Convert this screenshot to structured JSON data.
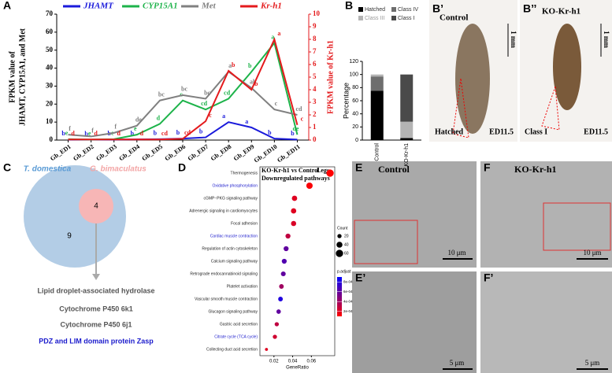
{
  "chart_data": [
    {
      "type": "line",
      "categories": [
        "Gb_ED1",
        "Gb_ED2",
        "Gb_ED3",
        "Gb_ED4",
        "Gb_ED5",
        "Gb_ED6",
        "Gb_ED7",
        "Gb_ED8",
        "Gb_ED9",
        "Gb_ED10",
        "Gb_ED11"
      ],
      "series": [
        {
          "name": "JHAMT",
          "color": "#1a1adb",
          "values": [
            0.3,
            0.2,
            0.3,
            0.4,
            0.5,
            0.8,
            1.5,
            10,
            7,
            0.8,
            0.3
          ],
          "letters": [
            "b",
            "b",
            "b",
            "b",
            "b",
            "b",
            "b",
            "a",
            "a",
            "b",
            "b"
          ]
        },
        {
          "name": "CYP15A1",
          "color": "#1db34a",
          "values": [
            0.5,
            0.3,
            0.5,
            3,
            9,
            22,
            17,
            23,
            38,
            54,
            3
          ],
          "letters": [
            "e",
            "e",
            "e",
            "e",
            "d",
            "c",
            "cd",
            "cd",
            "b",
            "a",
            "de"
          ]
        },
        {
          "name": "Met",
          "color": "#808080",
          "values": [
            3,
            2,
            4,
            8,
            22,
            25,
            23,
            38,
            29,
            17,
            14
          ],
          "letters": [
            "f",
            "f",
            "f",
            "de",
            "bc",
            "bc",
            "bc",
            "a",
            "ab",
            "c",
            "cd"
          ]
        },
        {
          "name": "Kr-h1",
          "color": "#e41a1c",
          "axis": "y2",
          "values": [
            0.05,
            0.05,
            0.05,
            0.05,
            0.05,
            0.1,
            1.5,
            5.5,
            4,
            8,
            1.2
          ],
          "letters": [
            "d",
            "d",
            "d",
            "d",
            "cd",
            "cd",
            "c",
            "b",
            "b",
            "a",
            "c"
          ]
        }
      ],
      "ylim": [
        0,
        70
      ],
      "yticks": [
        0,
        10,
        20,
        30,
        40,
        50,
        60,
        70
      ],
      "y2lim": [
        0,
        10
      ],
      "y2ticks": [
        0,
        1,
        2,
        3,
        4,
        5,
        6,
        7,
        8,
        9,
        10
      ],
      "ylabel": [
        "FPKM value of",
        "JHAMT, CYP15A1, and Met"
      ],
      "y2label": "FPKM value of Kr-h1",
      "legend": "top"
    },
    {
      "type": "stacked_bar",
      "categories": [
        "Control",
        "KO-Kr-h1"
      ],
      "series": [
        {
          "name": "Hatched",
          "color": "#000000",
          "values": [
            75,
            3
          ]
        },
        {
          "name": "Class IV",
          "color": "#6e6e6e",
          "values": [
            22,
            0
          ]
        },
        {
          "name": "Class III",
          "color": "#b4b4b4",
          "values": [
            3,
            25
          ]
        },
        {
          "name": "Class I",
          "color": "#4a4a4a",
          "values": [
            0,
            72
          ]
        }
      ],
      "ylim": [
        0,
        120
      ],
      "yticks": [
        0,
        20,
        40,
        60,
        80,
        100,
        120
      ],
      "ylabel": "Percentage"
    },
    {
      "type": "dot",
      "title": "KO-Kr-h1 vs Control",
      "subtitle": "Legs",
      "note": "Downregulated pathways",
      "categories": [
        "Thermogenesis",
        "Oxidative phosphorylation",
        "cGMP−PKG signaling pathway",
        "Adrenergic signaling in cardiomyocytes",
        "Focal adhesion",
        "Cardiac muscle contraction",
        "Regulation of actin cytoskeleton",
        "Calcium signaling pathway",
        "Retrograde endocannabinoid signaling",
        "Platelet activation",
        "Vascular smooth muscle contraction",
        "Glucagon signaling pathway",
        "Gastric acid secretion",
        "Citrate cycle (TCA cycle)",
        "Collecting duct acid secretion"
      ],
      "highlighted": [
        false,
        true,
        false,
        false,
        false,
        true,
        false,
        false,
        false,
        false,
        false,
        false,
        false,
        true,
        false
      ],
      "highlight_color": "#1a1acc",
      "values": [
        0.08,
        0.058,
        0.042,
        0.041,
        0.041,
        0.035,
        0.033,
        0.031,
        0.03,
        0.028,
        0.027,
        0.025,
        0.023,
        0.021,
        0.012
      ],
      "sizes": [
        60,
        45,
        32,
        32,
        30,
        28,
        28,
        27,
        26,
        24,
        24,
        22,
        20,
        20,
        10
      ],
      "p_adjust": [
        0.0001,
        0.00012,
        0.0002,
        0.0002,
        0.00022,
        0.0003,
        0.0006,
        0.00065,
        0.0006,
        0.0004,
        0.0008,
        0.0006,
        0.0003,
        0.00025,
        0.0002
      ],
      "xlim": [
        0.005,
        0.085
      ],
      "xticks": [
        0.02,
        0.04,
        0.06
      ],
      "xlabel": "GeneRatio",
      "size_legend": {
        "title": "Count",
        "values": [
          20,
          40,
          60
        ]
      },
      "color_legend": {
        "title": "p.adjust",
        "lim": [
          0.0001,
          0.0009
        ],
        "colors": [
          "#ff0000",
          "#0000ff"
        ],
        "ticks": [
          {
            "value": 0.0008,
            "label": "8e-04"
          },
          {
            "value": 0.0006,
            "label": "6e-04"
          },
          {
            "value": 0.0004,
            "label": "4e-04"
          },
          {
            "value": 0.0002,
            "label": "2e-04"
          }
        ]
      }
    }
  ],
  "figure": {
    "panel_letters": [
      "A",
      "B",
      "B’",
      "B’’",
      "C",
      "D",
      "E",
      "F",
      "E’",
      "F’"
    ],
    "photos": [
      {
        "top": "Control",
        "scale": "1 mm",
        "bottom_left": "Hatched",
        "bottom_right": "ED11.5"
      },
      {
        "top": "KO-Kr-h1",
        "scale": "1 mm",
        "bottom_left": "Class I",
        "bottom_right": "ED11.5"
      }
    ],
    "venn": {
      "sets": [
        "T. domestica",
        "G. bimaculatus"
      ],
      "counts": [
        9,
        4
      ],
      "genes": [
        "Lipid droplet-associated hydrolase",
        "Cytochrome P450 6k1",
        "Cytochrome P450 6j1",
        "PDZ and LIM domain protein Zasp"
      ]
    },
    "micrographs": [
      {
        "label": "Control",
        "scale": "10 μm"
      },
      {
        "label": "KO-Kr-h1",
        "scale": "10 μm"
      },
      {
        "scale": "5 μm"
      },
      {
        "scale": "5 μm"
      }
    ]
  }
}
